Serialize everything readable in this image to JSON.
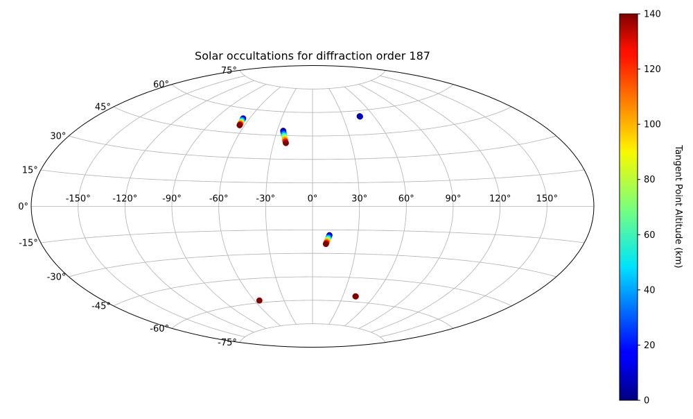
{
  "chart_data": {
    "type": "scatter",
    "projection": "aitoff",
    "title": "Solar occultations for diffraction order 187",
    "grid": true,
    "lon_ticks": [
      -150,
      -120,
      -90,
      -60,
      -30,
      0,
      30,
      60,
      90,
      120,
      150
    ],
    "lat_ticks": [
      -75,
      -60,
      -45,
      -30,
      -15,
      0,
      15,
      30,
      45,
      60,
      75
    ],
    "lon_tick_labels": [
      "-150°",
      "-120°",
      "-90°",
      "-60°",
      "-30°",
      "0°",
      "30°",
      "60°",
      "90°",
      "120°",
      "150°"
    ],
    "lat_tick_labels": [
      "-75°",
      "-60°",
      "-45°",
      "-30°",
      "-15°",
      "0°",
      "15°",
      "30°",
      "45°",
      "60°",
      "75°"
    ],
    "colorbar": {
      "label": "Tangent Point Altitude (km)",
      "colormap": "jet",
      "range": [
        0,
        140
      ],
      "ticks": [
        0,
        20,
        40,
        60,
        80,
        100,
        120,
        140
      ]
    },
    "series": [
      {
        "lon": [
          -65.8,
          -65.6,
          -65.4,
          -65.2,
          -65.0,
          -64.7,
          -64.5,
          -64.3
        ],
        "lat": [
          54.0,
          53.4,
          52.8,
          52.2,
          51.6,
          51.0,
          50.4,
          49.8
        ],
        "altitude": [
          2,
          20,
          40,
          60,
          80,
          100,
          120,
          140
        ]
      },
      {
        "lon": [
          -24.9,
          -24.3,
          -23.7,
          -23.1,
          -22.4,
          -21.8,
          -21.2,
          -20.6
        ],
        "lat": [
          48.0,
          46.9,
          45.8,
          44.7,
          43.6,
          42.5,
          41.4,
          40.3
        ],
        "altitude": [
          2,
          20,
          40,
          60,
          80,
          100,
          120,
          140
        ]
      },
      {
        "lon": [
          46.6,
          46.7
        ],
        "lat": [
          56.5,
          56.3
        ],
        "altitude": [
          2,
          8
        ]
      },
      {
        "lon": [
          11.2,
          10.9,
          10.6,
          10.3,
          10.0,
          9.7,
          9.4,
          9.1
        ],
        "lat": [
          -18.4,
          -19.2,
          -20.0,
          -20.8,
          -21.6,
          -22.4,
          -23.2,
          -24.0
        ],
        "altitude": [
          2,
          20,
          40,
          60,
          80,
          100,
          120,
          140
        ]
      },
      {
        "lon": [
          -55.2
        ],
        "lat": [
          -58.6
        ],
        "altitude": [
          140
        ]
      },
      {
        "lon": [
          42.8,
          42.4
        ],
        "lat": [
          -56.6,
          -56.6
        ],
        "altitude": [
          135,
          140
        ]
      }
    ]
  }
}
